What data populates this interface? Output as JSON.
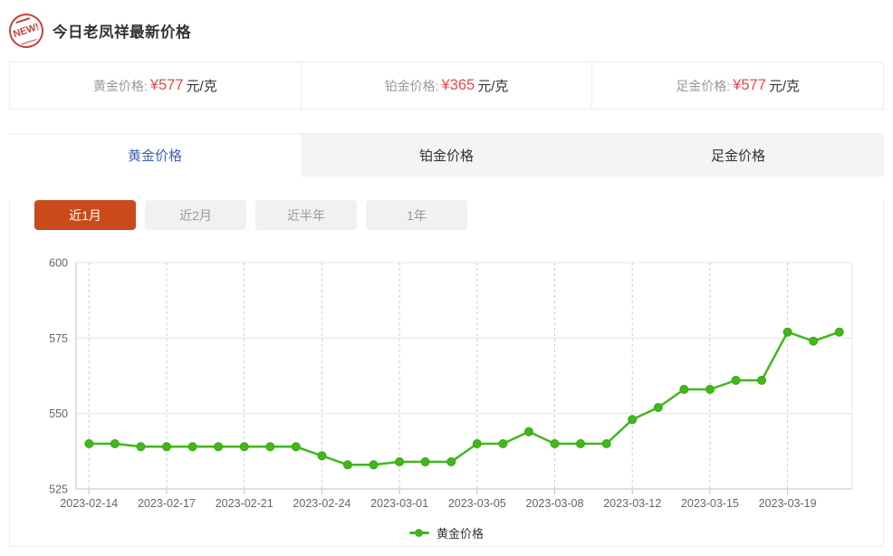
{
  "header": {
    "badge": "NEW!",
    "title": "今日老凤祥最新价格"
  },
  "price_cards": [
    {
      "label": "黄金价格:",
      "price": "¥577",
      "unit": "元/克"
    },
    {
      "label": "铂金价格:",
      "price": "¥365",
      "unit": "元/克"
    },
    {
      "label": "足金价格:",
      "price": "¥577",
      "unit": "元/克"
    }
  ],
  "tabs": [
    {
      "label": "黄金价格",
      "active": true
    },
    {
      "label": "铂金价格",
      "active": false
    },
    {
      "label": "足金价格",
      "active": false
    }
  ],
  "range_buttons": [
    {
      "label": "近1月",
      "active": true
    },
    {
      "label": "近2月",
      "active": false
    },
    {
      "label": "近半年",
      "active": false
    },
    {
      "label": "1年",
      "active": false
    }
  ],
  "colors": {
    "accent_red": "#e04b4b",
    "badge_red": "#c9413a",
    "tab_active_blue": "#3e63b2",
    "button_active_orange": "#cb4a1c",
    "line_green": "#41b71d"
  },
  "chart_data": {
    "type": "line",
    "title": "",
    "legend": "黄金价格",
    "legend_position": "bottom-center",
    "grid": true,
    "ylim": [
      525,
      600
    ],
    "y_ticks": [
      525,
      550,
      575,
      600
    ],
    "x_tick_labels": [
      "2023-02-14",
      "2023-02-17",
      "2023-02-21",
      "2023-02-24",
      "2023-03-01",
      "2023-03-05",
      "2023-03-08",
      "2023-03-12",
      "2023-03-15",
      "2023-03-19"
    ],
    "x_label_every": 3,
    "series": [
      {
        "name": "黄金价格",
        "color": "#41b71d",
        "values": [
          540,
          540,
          539,
          539,
          539,
          539,
          539,
          539,
          539,
          536,
          533,
          533,
          534,
          534,
          534,
          540,
          540,
          544,
          540,
          540,
          540,
          548,
          552,
          558,
          558,
          561,
          561,
          577,
          574,
          577
        ]
      }
    ]
  }
}
